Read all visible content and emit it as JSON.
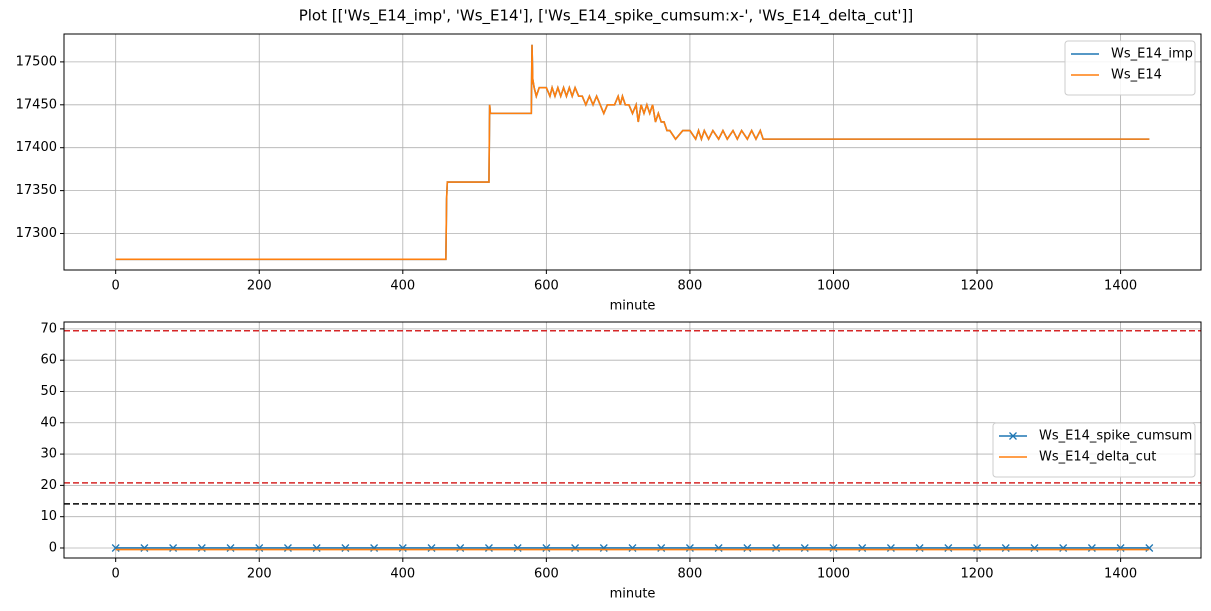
{
  "title": "Plot [['Ws_E14_imp', 'Ws_E14'], ['Ws_E14_spike_cumsum:x-', 'Ws_E14_delta_cut']]",
  "chart_data": [
    {
      "type": "line",
      "xlabel": "minute",
      "xlim": [
        -72,
        1512
      ],
      "ylim": [
        17257.5,
        17532.5
      ],
      "xticks": [
        0,
        200,
        400,
        600,
        800,
        1000,
        1200,
        1400
      ],
      "yticks": [
        17300,
        17350,
        17400,
        17450,
        17500
      ],
      "grid": true,
      "legend": "upper right",
      "x": [
        0,
        460,
        461,
        462,
        520,
        521,
        522,
        579,
        580,
        581,
        583,
        586,
        590,
        595,
        600,
        605,
        608,
        612,
        616,
        620,
        624,
        628,
        632,
        636,
        640,
        645,
        650,
        655,
        660,
        665,
        670,
        675,
        680,
        685,
        690,
        695,
        700,
        703,
        706,
        710,
        715,
        720,
        725,
        728,
        732,
        736,
        740,
        744,
        748,
        752,
        756,
        760,
        764,
        768,
        772,
        780,
        790,
        800,
        808,
        812,
        816,
        820,
        826,
        832,
        840,
        846,
        852,
        860,
        866,
        872,
        880,
        886,
        892,
        898,
        902,
        910,
        1000,
        1200,
        1440
      ],
      "series": [
        {
          "name": "Ws_E14_imp",
          "color": "#1f77b4",
          "values": [
            17270,
            17270,
            17340,
            17360,
            17360,
            17450,
            17440,
            17440,
            17520,
            17480,
            17470,
            17460,
            17470,
            17470,
            17470,
            17460,
            17470,
            17460,
            17470,
            17460,
            17470,
            17460,
            17470,
            17460,
            17470,
            17460,
            17460,
            17450,
            17460,
            17450,
            17460,
            17450,
            17440,
            17450,
            17450,
            17450,
            17460,
            17450,
            17460,
            17450,
            17450,
            17440,
            17450,
            17430,
            17450,
            17440,
            17450,
            17440,
            17450,
            17430,
            17440,
            17430,
            17430,
            17420,
            17420,
            17410,
            17420,
            17420,
            17410,
            17420,
            17410,
            17420,
            17410,
            17420,
            17410,
            17420,
            17410,
            17420,
            17410,
            17420,
            17410,
            17420,
            17410,
            17420,
            17410,
            17410,
            17410,
            17410,
            17410
          ]
        },
        {
          "name": "Ws_E14",
          "color": "#ff7f0e",
          "values": [
            17270,
            17270,
            17340,
            17360,
            17360,
            17450,
            17440,
            17440,
            17520,
            17480,
            17470,
            17460,
            17470,
            17470,
            17470,
            17460,
            17470,
            17460,
            17470,
            17460,
            17470,
            17460,
            17470,
            17460,
            17470,
            17460,
            17460,
            17450,
            17460,
            17450,
            17460,
            17450,
            17440,
            17450,
            17450,
            17450,
            17460,
            17450,
            17460,
            17450,
            17450,
            17440,
            17450,
            17430,
            17450,
            17440,
            17450,
            17440,
            17450,
            17430,
            17440,
            17430,
            17430,
            17420,
            17420,
            17410,
            17420,
            17420,
            17410,
            17420,
            17410,
            17420,
            17410,
            17420,
            17410,
            17420,
            17410,
            17420,
            17410,
            17420,
            17410,
            17420,
            17410,
            17420,
            17410,
            17410,
            17410,
            17410,
            17410
          ]
        }
      ]
    },
    {
      "type": "line",
      "xlabel": "minute",
      "xlim": [
        -72,
        1512
      ],
      "ylim": [
        -3.2,
        72.2
      ],
      "xticks": [
        0,
        200,
        400,
        600,
        800,
        1000,
        1200,
        1400
      ],
      "yticks": [
        0,
        10,
        20,
        30,
        40,
        50,
        60,
        70
      ],
      "grid": true,
      "legend": "center right",
      "hlines": [
        {
          "value": 69.4,
          "color": "#d62728"
        },
        {
          "value": 20.8,
          "color": "#d62728"
        },
        {
          "value": 14.1,
          "color": "#000000"
        }
      ],
      "x": [
        0,
        40,
        80,
        120,
        160,
        200,
        240,
        280,
        320,
        360,
        400,
        440,
        480,
        520,
        560,
        600,
        640,
        680,
        720,
        760,
        800,
        840,
        880,
        920,
        960,
        1000,
        1040,
        1080,
        1120,
        1160,
        1200,
        1240,
        1280,
        1320,
        1360,
        1400,
        1440
      ],
      "series": [
        {
          "name": "Ws_E14_spike_cumsum",
          "color": "#1f77b4",
          "marker": "x",
          "values": [
            0,
            0,
            0,
            0,
            0,
            0,
            0,
            0,
            0,
            0,
            0,
            0,
            0,
            0,
            0,
            0,
            0,
            0,
            0,
            0,
            0,
            0,
            0,
            0,
            0,
            0,
            0,
            0,
            0,
            0,
            0,
            0,
            0,
            0,
            0,
            0,
            0
          ]
        },
        {
          "name": "Ws_E14_delta_cut",
          "color": "#ff7f0e",
          "values": [
            -0.5,
            -0.5,
            -0.5,
            -0.5,
            -0.5,
            -0.5,
            -0.5,
            -0.5,
            -0.5,
            -0.5,
            -0.5,
            -0.5,
            -0.5,
            -0.5,
            -0.5,
            -0.5,
            -0.5,
            -0.5,
            -0.5,
            -0.5,
            -0.5,
            -0.5,
            -0.5,
            -0.5,
            -0.5,
            -0.5,
            -0.5,
            -0.5,
            -0.5,
            -0.5,
            -0.5,
            -0.5,
            -0.5,
            -0.5,
            -0.5,
            -0.5,
            -0.5
          ]
        }
      ]
    }
  ]
}
